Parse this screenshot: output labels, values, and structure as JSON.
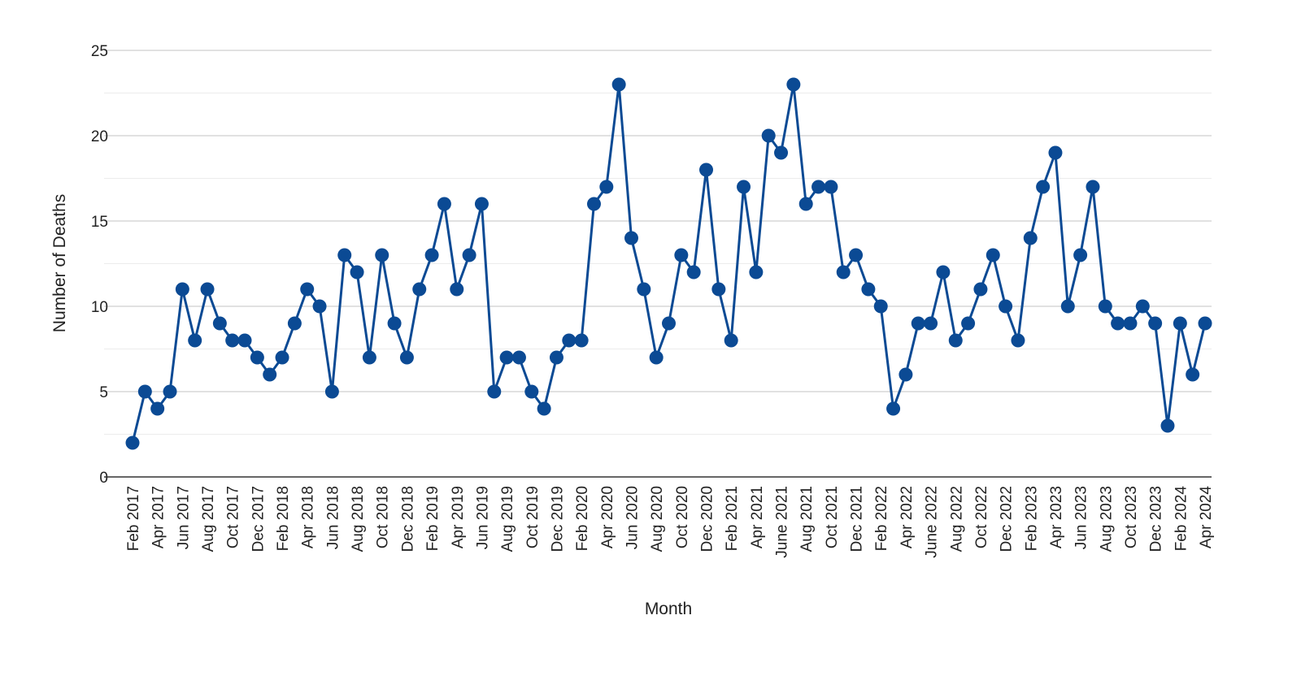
{
  "chart_data": {
    "type": "line",
    "title": "",
    "xlabel": "Month",
    "ylabel": "Number of Deaths",
    "ylim": [
      0,
      25
    ],
    "yticks": [
      0,
      5,
      10,
      15,
      20,
      25
    ],
    "minor_grid": true,
    "grid": true,
    "legend": "none",
    "series_color": "#0b4a94",
    "x": [
      "Feb 2017",
      "Mar 2017",
      "Apr 2017",
      "May 2017",
      "Jun 2017",
      "Jul 2017",
      "Aug 2017",
      "Sep 2017",
      "Oct 2017",
      "Nov 2017",
      "Dec 2017",
      "Jan 2018",
      "Feb 2018",
      "Mar 2018",
      "Apr 2018",
      "May 2018",
      "Jun 2018",
      "Jul 2018",
      "Aug 2018",
      "Sep 2018",
      "Oct 2018",
      "Nov 2018",
      "Dec 2018",
      "Jan 2019",
      "Feb 2019",
      "Mar 2019",
      "Apr 2019",
      "May 2019",
      "Jun 2019",
      "Jul 2019",
      "Aug 2019",
      "Sep 2019",
      "Oct 2019",
      "Nov 2019",
      "Dec 2019",
      "Jan 2020",
      "Feb 2020",
      "Mar 2020",
      "Apr 2020",
      "May 2020",
      "Jun 2020",
      "Jul 2020",
      "Aug 2020",
      "Sep 2020",
      "Oct 2020",
      "Nov 2020",
      "Dec 2020",
      "Jan 2021",
      "Feb 2021",
      "Mar 2021",
      "Apr 2021",
      "May 2021",
      "June 2021",
      "Jul 2021",
      "Aug 2021",
      "Sep 2021",
      "Oct 2021",
      "Nov 2021",
      "Dec 2021",
      "Jan 2022",
      "Feb 2022",
      "Mar 2022",
      "Apr 2022",
      "May 2022",
      "June 2022",
      "Jul 2022",
      "Aug 2022",
      "Sep 2022",
      "Oct 2022",
      "Nov 2022",
      "Dec 2022",
      "Jan 2023",
      "Feb 2023",
      "Mar 2023",
      "Apr 2023",
      "May 2023",
      "Jun 2023",
      "Jul 2023",
      "Aug 2023",
      "Sep 2023",
      "Oct 2023",
      "Nov 2023",
      "Dec 2023",
      "Jan 2024",
      "Feb 2024",
      "Mar 2024",
      "Apr 2024"
    ],
    "series": [
      {
        "values": [
          2,
          5,
          4,
          5,
          11,
          8,
          11,
          9,
          8,
          8,
          7,
          6,
          7,
          9,
          11,
          10,
          5,
          13,
          12,
          7,
          13,
          9,
          7,
          11,
          13,
          16,
          11,
          13,
          16,
          5,
          7,
          7,
          5,
          4,
          7,
          8,
          8,
          16,
          17,
          23,
          14,
          11,
          7,
          9,
          13,
          12,
          18,
          11,
          8,
          17,
          12,
          20,
          19,
          23,
          16,
          17,
          17,
          12,
          13,
          11,
          10,
          4,
          6,
          9,
          9,
          12,
          8,
          9,
          11,
          13,
          10,
          8,
          14,
          17,
          19,
          10,
          13,
          17,
          10,
          9,
          9,
          10,
          9,
          3,
          9,
          6,
          9
        ]
      }
    ],
    "xtick_labels": [
      "Feb 2017",
      "Apr 2017",
      "Jun 2017",
      "Aug 2017",
      "Oct 2017",
      "Dec 2017",
      "Feb 2018",
      "Apr 2018",
      "Jun 2018",
      "Aug 2018",
      "Oct 2018",
      "Dec 2018",
      "Feb 2019",
      "Apr 2019",
      "Jun 2019",
      "Aug 2019",
      "Oct 2019",
      "Dec 2019",
      "Feb 2020",
      "Apr 2020",
      "Jun 2020",
      "Aug 2020",
      "Oct 2020",
      "Dec 2020",
      "Feb 2021",
      "Apr 2021",
      "June 2021",
      "Aug 2021",
      "Oct 2021",
      "Dec 2021",
      "Feb 2022",
      "Apr 2022",
      "June 2022",
      "Aug 2022",
      "Oct 2022",
      "Dec 2022",
      "Feb 2023",
      "Apr 2023",
      "Jun 2023",
      "Aug 2023",
      "Oct 2023",
      "Dec 2023",
      "Feb 2024",
      "Apr 2024"
    ]
  }
}
